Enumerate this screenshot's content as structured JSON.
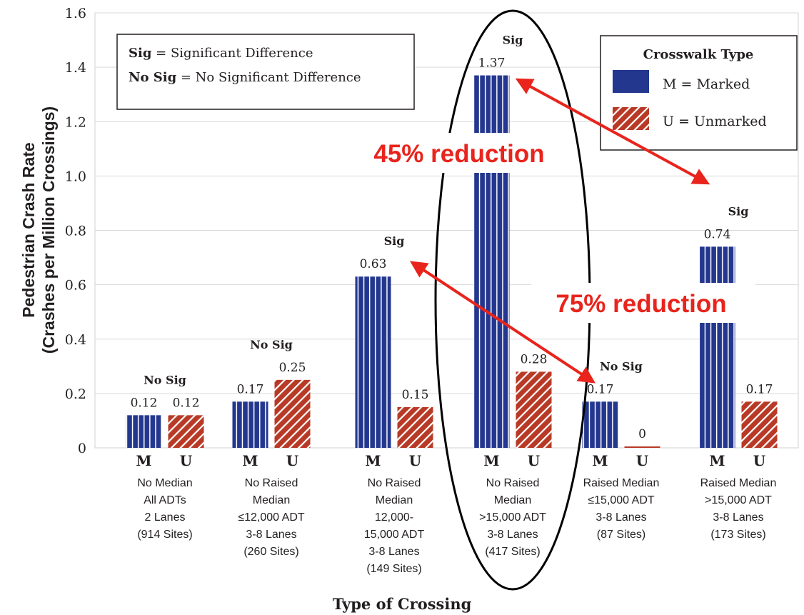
{
  "colors": {
    "marked": "#24378f",
    "unmarked": "#b83a26",
    "arrow": "#e8241c",
    "text": "#231f20",
    "grid": "#d9d9d9"
  },
  "chart_data": {
    "type": "bar",
    "ylabel_line1": "Pedestrian Crash Rate",
    "ylabel_line2": "(Crashes per Million Crossings)",
    "xlabel": "Type of Crossing",
    "ylim": [
      0,
      1.6
    ],
    "yticks": [
      "0",
      "0.2",
      "0.4",
      "0.6",
      "0.8",
      "1.0",
      "1.2",
      "1.4",
      "1.6"
    ],
    "grid": true,
    "series": [
      {
        "name": "M = Marked",
        "key": "M",
        "values": [
          0.12,
          0.17,
          0.63,
          1.37,
          0.17,
          0.74
        ]
      },
      {
        "name": "U = Unmarked",
        "key": "U",
        "values": [
          0.12,
          0.25,
          0.15,
          0.28,
          0,
          0.17
        ]
      }
    ],
    "groups": [
      {
        "desc": [
          "No Median",
          "All ADTs",
          "2 Lanes",
          "(914 Sites)"
        ],
        "sig": "No Sig",
        "labels": [
          "0.12",
          "0.12"
        ]
      },
      {
        "desc": [
          "No Raised",
          "Median",
          "≤12,000 ADT",
          "3-8 Lanes",
          "(260 Sites)"
        ],
        "sig": "No Sig",
        "labels": [
          "0.17",
          "0.25"
        ]
      },
      {
        "desc": [
          "No Raised",
          "Median",
          "12,000-",
          "15,000 ADT",
          "3-8 Lanes",
          "(149 Sites)"
        ],
        "sig": "Sig",
        "labels": [
          "0.63",
          "0.15"
        ]
      },
      {
        "desc": [
          "No Raised",
          "Median",
          ">15,000 ADT",
          "3-8 Lanes",
          "(417 Sites)"
        ],
        "sig": "Sig",
        "labels": [
          "1.37",
          "0.28"
        ]
      },
      {
        "desc": [
          "Raised Median",
          "≤15,000 ADT",
          "3-8 Lanes",
          "(87 Sites)"
        ],
        "sig": "No Sig",
        "labels": [
          "0.17",
          "0"
        ]
      },
      {
        "desc": [
          "Raised Median",
          ">15,000 ADT",
          "3-8 Lanes",
          "(173 Sites)"
        ],
        "sig": "Sig",
        "labels": [
          "0.74",
          "0.17"
        ]
      }
    ],
    "sig_key": {
      "sig_term": "Sig",
      "sig_def": " = Significant Difference",
      "nosig_term": "No Sig",
      "nosig_def": " = No Significant Difference"
    },
    "legend": {
      "title": "Crosswalk Type",
      "placement": "top-right",
      "items": [
        "M = Marked",
        "U = Unmarked"
      ]
    },
    "annotations": [
      {
        "text": "45% reduction"
      },
      {
        "text": "75% reduction"
      }
    ]
  }
}
